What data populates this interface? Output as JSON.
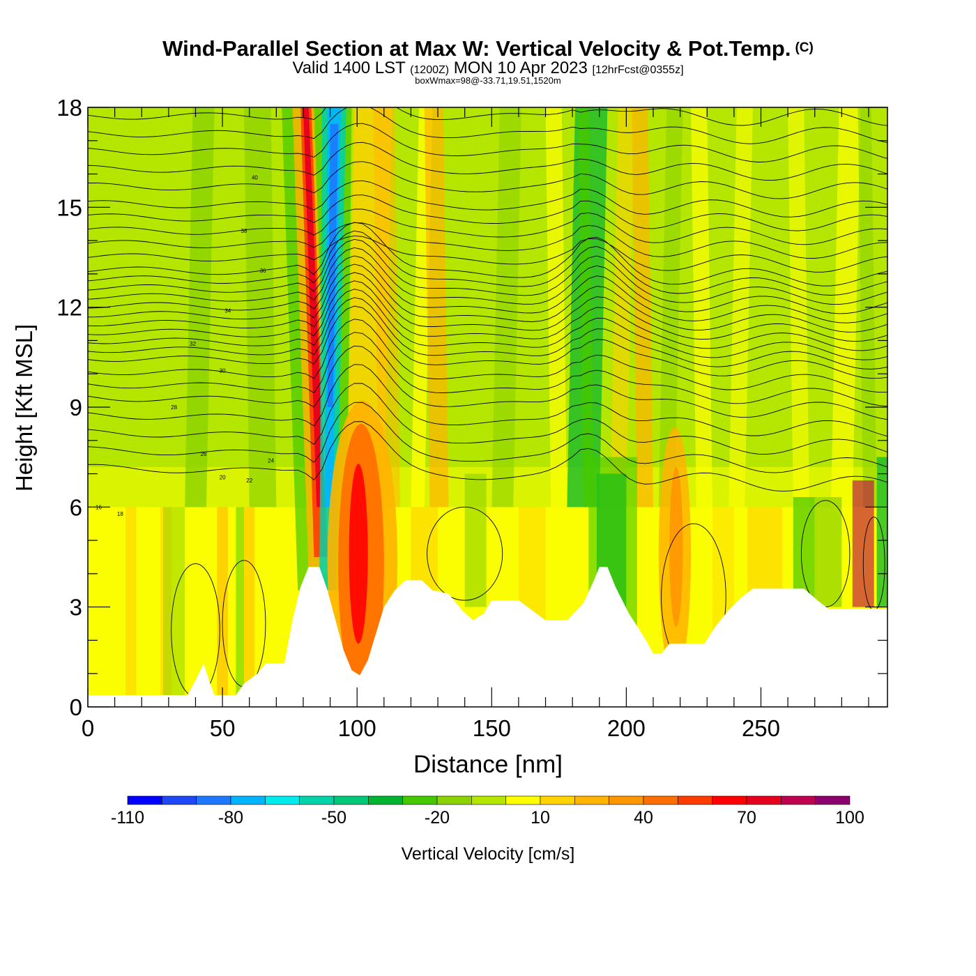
{
  "chart_data": {
    "type": "heatmap",
    "title": "Wind-Parallel Section at Max W: Vertical Velocity & Pot.Temp.",
    "copyright_mark": "(C)",
    "subtitle": {
      "prefix": "Valid 1400 LST",
      "utc": "(1200Z)",
      "date": "MON 10 Apr 2023",
      "forecast": "[12hrFcst@0355z]"
    },
    "subtitle2": "boxWmax=98@-33.71,19.51,1520m",
    "xlabel": "Distance [nm]",
    "ylabel": "Height [Kft MSL]",
    "xlim": [
      0,
      297
    ],
    "ylim": [
      0,
      18
    ],
    "xticks": [
      "0",
      "50",
      "100",
      "150",
      "200",
      "250"
    ],
    "yticks": [
      "0",
      "3",
      "6",
      "9",
      "12",
      "15",
      "18"
    ],
    "colorbar": {
      "label": "Vertical Velocity [cm/s]",
      "tick_labels": [
        "-110",
        "-80",
        "-50",
        "-20",
        "10",
        "40",
        "70",
        "100"
      ],
      "colors": [
        "#0000ff",
        "#1e48f5",
        "#1e78ff",
        "#00b4ff",
        "#00ebeb",
        "#00d2aa",
        "#00c878",
        "#00b432",
        "#46c800",
        "#8cd200",
        "#b4e600",
        "#ffff00",
        "#ffd200",
        "#ffb400",
        "#ff9600",
        "#ff6e00",
        "#ff3c00",
        "#ff0000",
        "#e6001e",
        "#be0050",
        "#8c006e"
      ]
    },
    "terrain_kft": [
      [
        0,
        0.35
      ],
      [
        37,
        0.35
      ],
      [
        40,
        0.8
      ],
      [
        43,
        1.3
      ],
      [
        45,
        0.8
      ],
      [
        47,
        0.35
      ],
      [
        55,
        0.35
      ],
      [
        58,
        0.7
      ],
      [
        63,
        1.0
      ],
      [
        66,
        1.3
      ],
      [
        73,
        1.3
      ],
      [
        76,
        2.6
      ],
      [
        79,
        3.6
      ],
      [
        82,
        4.2
      ],
      [
        86,
        4.2
      ],
      [
        89,
        3.5
      ],
      [
        92,
        2.6
      ],
      [
        95,
        1.7
      ],
      [
        98,
        1.1
      ],
      [
        101,
        0.95
      ],
      [
        104,
        1.4
      ],
      [
        107,
        2.2
      ],
      [
        110,
        3.0
      ],
      [
        114,
        3.5
      ],
      [
        118,
        3.8
      ],
      [
        124,
        3.8
      ],
      [
        128,
        3.5
      ],
      [
        134,
        3.4
      ],
      [
        139,
        2.9
      ],
      [
        143,
        2.6
      ],
      [
        147,
        2.8
      ],
      [
        150,
        3.2
      ],
      [
        160,
        3.2
      ],
      [
        165,
        2.9
      ],
      [
        170,
        2.6
      ],
      [
        178,
        2.6
      ],
      [
        184,
        3.1
      ],
      [
        188,
        3.8
      ],
      [
        190,
        4.2
      ],
      [
        193,
        4.2
      ],
      [
        196,
        3.6
      ],
      [
        201,
        2.8
      ],
      [
        205,
        2.3
      ],
      [
        208,
        1.9
      ],
      [
        210,
        1.6
      ],
      [
        213,
        1.6
      ],
      [
        216,
        1.9
      ],
      [
        229,
        1.9
      ],
      [
        233,
        2.4
      ],
      [
        238,
        2.9
      ],
      [
        243,
        3.3
      ],
      [
        247,
        3.55
      ],
      [
        266,
        3.55
      ],
      [
        271,
        3.2
      ],
      [
        275,
        2.95
      ],
      [
        297,
        2.95
      ]
    ],
    "theta_contour_labels": [
      "16",
      "18",
      "20",
      "22",
      "24",
      "26",
      "28",
      "30",
      "32",
      "34",
      "36",
      "38",
      "40"
    ],
    "max_w_value_cm_s": 98,
    "max_w_location": "-33.71,19.51",
    "max_w_height_m": 1520
  }
}
